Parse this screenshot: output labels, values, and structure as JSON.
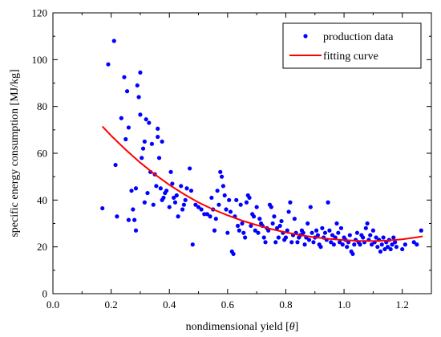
{
  "chart_data": {
    "type": "scatter",
    "xlabel_prefix": "nondimensional yield [",
    "xlabel_symbol": "θ",
    "xlabel_suffix": "]",
    "ylabel": "specific energy consumption [MJ/kg]",
    "xlim": [
      0.0,
      1.3
    ],
    "ylim": [
      0,
      120
    ],
    "xticks": [
      "0.0",
      "0.2",
      "0.4",
      "0.6",
      "0.8",
      "1.0",
      "1.2"
    ],
    "yticks": [
      "0",
      "20",
      "40",
      "60",
      "80",
      "100",
      "120"
    ],
    "legend_position": "top-right",
    "grid": false,
    "series": [
      {
        "name": "production data",
        "kind": "scatter",
        "color": "#0000ff",
        "points": [
          [
            0.17,
            36.5
          ],
          [
            0.19,
            98
          ],
          [
            0.21,
            108
          ],
          [
            0.215,
            55
          ],
          [
            0.22,
            33
          ],
          [
            0.235,
            75
          ],
          [
            0.245,
            92.5
          ],
          [
            0.25,
            66
          ],
          [
            0.255,
            86.5
          ],
          [
            0.26,
            71
          ],
          [
            0.26,
            31.5
          ],
          [
            0.27,
            44
          ],
          [
            0.275,
            36
          ],
          [
            0.28,
            31.5
          ],
          [
            0.285,
            45
          ],
          [
            0.285,
            27
          ],
          [
            0.29,
            89
          ],
          [
            0.295,
            84
          ],
          [
            0.3,
            94.5
          ],
          [
            0.3,
            76.5
          ],
          [
            0.305,
            58
          ],
          [
            0.31,
            62
          ],
          [
            0.315,
            65
          ],
          [
            0.315,
            39
          ],
          [
            0.32,
            74.5
          ],
          [
            0.325,
            43
          ],
          [
            0.33,
            73
          ],
          [
            0.335,
            52
          ],
          [
            0.34,
            64
          ],
          [
            0.345,
            38
          ],
          [
            0.35,
            51
          ],
          [
            0.355,
            46
          ],
          [
            0.36,
            70.5
          ],
          [
            0.36,
            67
          ],
          [
            0.365,
            58
          ],
          [
            0.37,
            45
          ],
          [
            0.375,
            65
          ],
          [
            0.375,
            40
          ],
          [
            0.38,
            41
          ],
          [
            0.385,
            43
          ],
          [
            0.39,
            44
          ],
          [
            0.4,
            37
          ],
          [
            0.405,
            52
          ],
          [
            0.41,
            47
          ],
          [
            0.415,
            41
          ],
          [
            0.42,
            39
          ],
          [
            0.425,
            42
          ],
          [
            0.43,
            33
          ],
          [
            0.44,
            46
          ],
          [
            0.445,
            36
          ],
          [
            0.45,
            38
          ],
          [
            0.455,
            40
          ],
          [
            0.46,
            45
          ],
          [
            0.47,
            53.5
          ],
          [
            0.475,
            44
          ],
          [
            0.48,
            21
          ],
          [
            0.49,
            38
          ],
          [
            0.5,
            37
          ],
          [
            0.51,
            36
          ],
          [
            0.52,
            34
          ],
          [
            0.53,
            34
          ],
          [
            0.54,
            33
          ],
          [
            0.545,
            41
          ],
          [
            0.55,
            36
          ],
          [
            0.555,
            27
          ],
          [
            0.56,
            32
          ],
          [
            0.565,
            44
          ],
          [
            0.57,
            38
          ],
          [
            0.575,
            52
          ],
          [
            0.58,
            50
          ],
          [
            0.585,
            46
          ],
          [
            0.59,
            42
          ],
          [
            0.595,
            36
          ],
          [
            0.6,
            26
          ],
          [
            0.605,
            40
          ],
          [
            0.61,
            35
          ],
          [
            0.615,
            18
          ],
          [
            0.62,
            17
          ],
          [
            0.625,
            33
          ],
          [
            0.63,
            40
          ],
          [
            0.635,
            29
          ],
          [
            0.64,
            27
          ],
          [
            0.645,
            38
          ],
          [
            0.65,
            30
          ],
          [
            0.655,
            26
          ],
          [
            0.66,
            24
          ],
          [
            0.665,
            39
          ],
          [
            0.67,
            42
          ],
          [
            0.675,
            41
          ],
          [
            0.68,
            29
          ],
          [
            0.685,
            34
          ],
          [
            0.69,
            33
          ],
          [
            0.695,
            27
          ],
          [
            0.7,
            37
          ],
          [
            0.705,
            26
          ],
          [
            0.71,
            32
          ],
          [
            0.715,
            30
          ],
          [
            0.72,
            29
          ],
          [
            0.725,
            24
          ],
          [
            0.73,
            22
          ],
          [
            0.735,
            28
          ],
          [
            0.74,
            27
          ],
          [
            0.745,
            38
          ],
          [
            0.75,
            37
          ],
          [
            0.755,
            30
          ],
          [
            0.76,
            33
          ],
          [
            0.765,
            22
          ],
          [
            0.77,
            28
          ],
          [
            0.775,
            24
          ],
          [
            0.78,
            29
          ],
          [
            0.785,
            31
          ],
          [
            0.79,
            26
          ],
          [
            0.795,
            23
          ],
          [
            0.8,
            24
          ],
          [
            0.805,
            27
          ],
          [
            0.81,
            35
          ],
          [
            0.815,
            39
          ],
          [
            0.82,
            22
          ],
          [
            0.825,
            25
          ],
          [
            0.83,
            32
          ],
          [
            0.835,
            26
          ],
          [
            0.84,
            22
          ],
          [
            0.845,
            24
          ],
          [
            0.85,
            25
          ],
          [
            0.855,
            27
          ],
          [
            0.86,
            26
          ],
          [
            0.865,
            21
          ],
          [
            0.87,
            24
          ],
          [
            0.875,
            30
          ],
          [
            0.88,
            23
          ],
          [
            0.885,
            37
          ],
          [
            0.89,
            26
          ],
          [
            0.895,
            22
          ],
          [
            0.9,
            24
          ],
          [
            0.905,
            27
          ],
          [
            0.91,
            25
          ],
          [
            0.915,
            21
          ],
          [
            0.92,
            20
          ],
          [
            0.925,
            28
          ],
          [
            0.93,
            24
          ],
          [
            0.935,
            26
          ],
          [
            0.94,
            23
          ],
          [
            0.945,
            39
          ],
          [
            0.95,
            27
          ],
          [
            0.955,
            22
          ],
          [
            0.96,
            25
          ],
          [
            0.965,
            21
          ],
          [
            0.97,
            24
          ],
          [
            0.975,
            30
          ],
          [
            0.98,
            26
          ],
          [
            0.985,
            22
          ],
          [
            0.99,
            28
          ],
          [
            0.995,
            21
          ],
          [
            1.0,
            24
          ],
          [
            1.005,
            23
          ],
          [
            1.01,
            20
          ],
          [
            1.015,
            22
          ],
          [
            1.02,
            25
          ],
          [
            1.025,
            18
          ],
          [
            1.03,
            17
          ],
          [
            1.035,
            21
          ],
          [
            1.04,
            23
          ],
          [
            1.045,
            26
          ],
          [
            1.05,
            22
          ],
          [
            1.055,
            21
          ],
          [
            1.06,
            25
          ],
          [
            1.065,
            24
          ],
          [
            1.07,
            22
          ],
          [
            1.075,
            28
          ],
          [
            1.08,
            30
          ],
          [
            1.085,
            23
          ],
          [
            1.09,
            25
          ],
          [
            1.095,
            21
          ],
          [
            1.1,
            27
          ],
          [
            1.105,
            22
          ],
          [
            1.11,
            24
          ],
          [
            1.115,
            20
          ],
          [
            1.12,
            23
          ],
          [
            1.125,
            18
          ],
          [
            1.13,
            21
          ],
          [
            1.135,
            24
          ],
          [
            1.14,
            19
          ],
          [
            1.145,
            22
          ],
          [
            1.15,
            20
          ],
          [
            1.155,
            23
          ],
          [
            1.16,
            19
          ],
          [
            1.165,
            21
          ],
          [
            1.17,
            24
          ],
          [
            1.175,
            22
          ],
          [
            1.18,
            20
          ],
          [
            1.2,
            19
          ],
          [
            1.21,
            21
          ],
          [
            1.24,
            22
          ],
          [
            1.25,
            21
          ],
          [
            1.265,
            27
          ]
        ]
      },
      {
        "name": "fitting curve",
        "kind": "line",
        "color": "#ff0000",
        "points": [
          [
            0.17,
            71.5
          ],
          [
            0.2,
            67.5
          ],
          [
            0.25,
            61.5
          ],
          [
            0.3,
            56
          ],
          [
            0.35,
            51
          ],
          [
            0.4,
            46.5
          ],
          [
            0.45,
            42.5
          ],
          [
            0.5,
            39
          ],
          [
            0.55,
            36
          ],
          [
            0.6,
            33.5
          ],
          [
            0.65,
            31.2
          ],
          [
            0.7,
            29.3
          ],
          [
            0.75,
            27.6
          ],
          [
            0.8,
            26.2
          ],
          [
            0.85,
            25
          ],
          [
            0.9,
            24.1
          ],
          [
            0.95,
            23.4
          ],
          [
            1.0,
            22.9
          ],
          [
            1.05,
            22.6
          ],
          [
            1.1,
            22.5
          ],
          [
            1.15,
            22.7
          ],
          [
            1.2,
            23.2
          ],
          [
            1.25,
            24.1
          ],
          [
            1.27,
            24.5
          ]
        ]
      }
    ]
  }
}
